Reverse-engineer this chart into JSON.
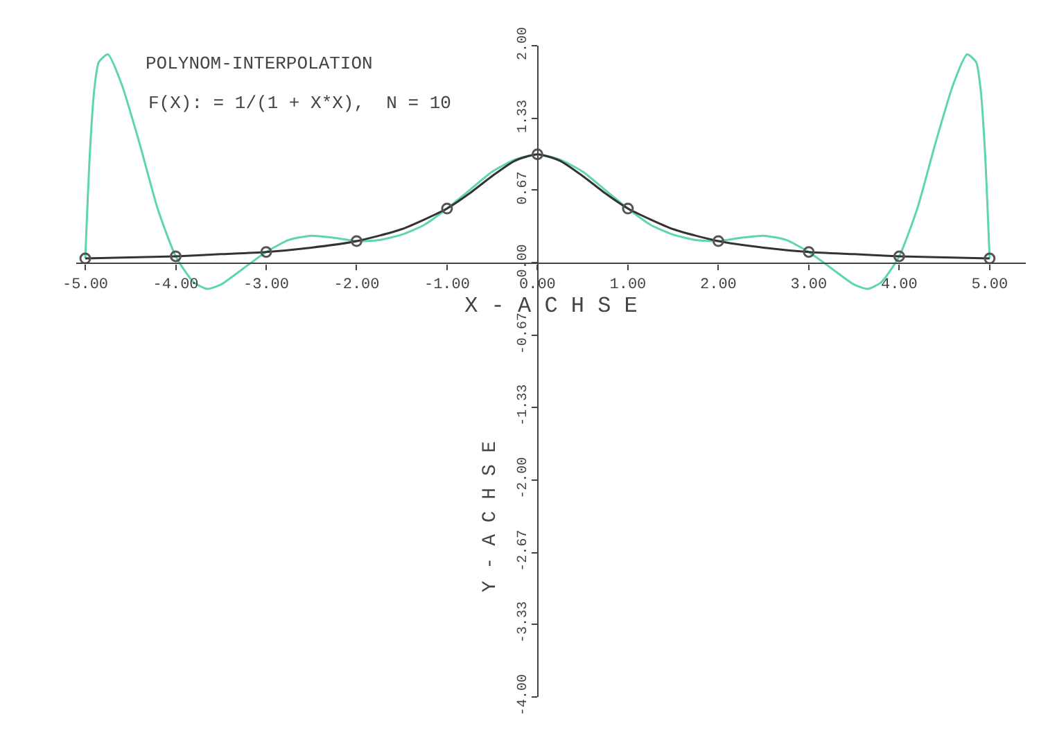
{
  "chart_data": {
    "type": "line",
    "title": "POLYNOM-INTERPOLATION",
    "subtitle": "F(X): = 1/(1 + X*X),  N = 10",
    "xlabel": "X - A C H S E",
    "ylabel": "Y - A C H S E",
    "xlim": [
      -5.1,
      5.4
    ],
    "ylim": [
      -4,
      2
    ],
    "xticks": [
      {
        "value": -5,
        "label": "-5.00"
      },
      {
        "value": -4,
        "label": "-4.00"
      },
      {
        "value": -3,
        "label": "-3.00"
      },
      {
        "value": -2,
        "label": "-2.00"
      },
      {
        "value": -1,
        "label": "-1.00"
      },
      {
        "value": 0,
        "label": "0.00"
      },
      {
        "value": 1,
        "label": "1.00"
      },
      {
        "value": 2,
        "label": "2.00"
      },
      {
        "value": 3,
        "label": "3.00"
      },
      {
        "value": 4,
        "label": "4.00"
      },
      {
        "value": 5,
        "label": "5.00"
      }
    ],
    "yticks": [
      {
        "value": -4,
        "label": "-4.00"
      },
      {
        "value": -3.33,
        "label": "-3.33"
      },
      {
        "value": -2.67,
        "label": "-2.67"
      },
      {
        "value": -2,
        "label": "-2.00"
      },
      {
        "value": -1.33,
        "label": "-1.33"
      },
      {
        "value": -0.67,
        "label": "-0.67"
      },
      {
        "value": 0,
        "label": "0.00"
      },
      {
        "value": 0.67,
        "label": "0.67"
      },
      {
        "value": 1.33,
        "label": "1.33"
      },
      {
        "value": 2,
        "label": "2.00"
      }
    ],
    "series": [
      {
        "color": "#5fd4b4",
        "marker": "none",
        "x": [
          -5,
          -4.95,
          -4.9,
          -4.85,
          -4.75,
          -4.6,
          -4.4,
          -4.2,
          -4,
          -3.8,
          -3.65,
          -3.5,
          -3.25,
          -3,
          -2.75,
          -2.5,
          -2.25,
          -2,
          -1.75,
          -1.5,
          -1.25,
          -1,
          -0.75,
          -0.5,
          -0.25,
          0,
          0.25,
          0.5,
          0.75,
          1,
          1.25,
          1.5,
          1.75,
          2,
          2.25,
          2.5,
          2.75,
          3,
          3.25,
          3.5,
          3.65,
          3.8,
          4,
          4.2,
          4.4,
          4.6,
          4.75,
          4.85,
          4.9,
          4.95,
          5
        ],
        "values": [
          0.04,
          1.0,
          1.6,
          1.85,
          1.92,
          1.65,
          1.1,
          0.5,
          0.06,
          -0.18,
          -0.24,
          -0.2,
          -0.05,
          0.1,
          0.21,
          0.25,
          0.23,
          0.2,
          0.21,
          0.26,
          0.35,
          0.5,
          0.67,
          0.84,
          0.95,
          1.0,
          0.95,
          0.84,
          0.67,
          0.5,
          0.35,
          0.26,
          0.21,
          0.2,
          0.23,
          0.25,
          0.21,
          0.1,
          -0.05,
          -0.2,
          -0.24,
          -0.18,
          0.06,
          0.5,
          1.1,
          1.65,
          1.92,
          1.85,
          1.6,
          1.0,
          0.04
        ]
      },
      {
        "color": "#333333",
        "marker": "none",
        "x": [
          -5,
          -4.5,
          -4,
          -3.5,
          -3,
          -2.5,
          -2,
          -1.5,
          -1,
          -0.75,
          -0.5,
          -0.25,
          0,
          0.25,
          0.5,
          0.75,
          1,
          1.5,
          2,
          2.5,
          3,
          3.5,
          4,
          4.5,
          5
        ],
        "values": [
          0.04,
          0.05,
          0.06,
          0.08,
          0.1,
          0.14,
          0.2,
          0.31,
          0.5,
          0.64,
          0.8,
          0.94,
          1.0,
          0.94,
          0.8,
          0.64,
          0.5,
          0.31,
          0.2,
          0.14,
          0.1,
          0.08,
          0.06,
          0.05,
          0.04
        ]
      },
      {
        "type": "scatter",
        "color": "#555555",
        "marker": "circle",
        "x": [
          -5,
          -4,
          -3,
          -2,
          -1,
          0,
          1,
          2,
          3,
          4,
          5
        ],
        "values": [
          0.04,
          0.06,
          0.1,
          0.2,
          0.5,
          1.0,
          0.5,
          0.2,
          0.1,
          0.06,
          0.04
        ]
      }
    ]
  }
}
